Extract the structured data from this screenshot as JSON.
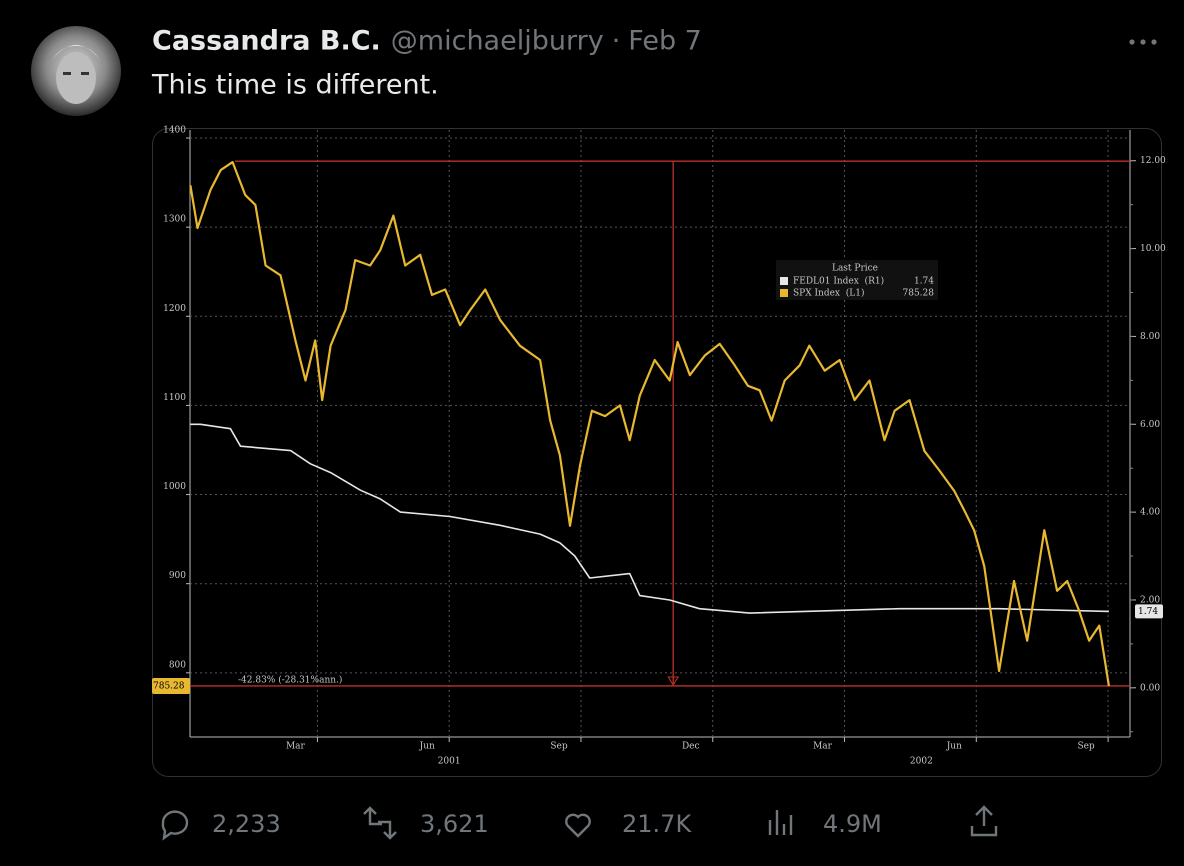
{
  "tweet": {
    "author": {
      "name": "Cassandra B.C.",
      "handle": "@michaeljburry"
    },
    "date": "Feb 7",
    "text": "This time is different.",
    "metrics": {
      "replies": "2,233",
      "reposts": "3,621",
      "likes": "21.7K",
      "views": "4.9M"
    }
  },
  "chart_data": {
    "type": "line",
    "xlim": [
      0.1,
      21.5
    ],
    "xticks": [
      {
        "value": 2.5,
        "label": "Mar"
      },
      {
        "value": 5.5,
        "label": "Jun"
      },
      {
        "value": 8.5,
        "label": "Sep"
      },
      {
        "value": 11.5,
        "label": "Dec"
      },
      {
        "value": 14.5,
        "label": "Mar"
      },
      {
        "value": 17.5,
        "label": "Jun"
      },
      {
        "value": 20.5,
        "label": "Sep"
      }
    ],
    "year_labels": [
      {
        "value": 6,
        "label": "2001"
      },
      {
        "value": 16.75,
        "label": "2002"
      }
    ],
    "ylim": [
      728,
      1409
    ],
    "yticks": [
      800,
      900,
      1000,
      1100,
      1200,
      1300,
      1400
    ],
    "y2lim": [
      -1.12,
      12.7
    ],
    "y2ticks": [
      {
        "value": 0,
        "label": "0.00"
      },
      {
        "value": 2,
        "label": "2.00"
      },
      {
        "value": 4,
        "label": "4.00"
      },
      {
        "value": 6,
        "label": "6.00"
      },
      {
        "value": 8,
        "label": "8.00"
      },
      {
        "value": 10,
        "label": "10.00"
      },
      {
        "value": 12,
        "label": "12.00"
      }
    ],
    "grid": true,
    "legend_title": "Last Price",
    "series": [
      {
        "name": "FEDL01 Index  (R1)",
        "color": "#e6e6e6",
        "axis": "y2",
        "last": 1.74,
        "x": [
          0.11,
          0.34,
          1.02,
          1.25,
          2.39,
          2.84,
          3.3,
          3.98,
          4.43,
          4.89,
          6.02,
          7.16,
          8.07,
          8.52,
          8.86,
          9.2,
          10.11,
          10.34,
          11.02,
          11.7,
          12.84,
          16.25,
          18.52,
          21.02
        ],
        "values": [
          6.0,
          6.0,
          5.9,
          5.5,
          5.4,
          5.1,
          4.9,
          4.5,
          4.3,
          4.0,
          3.9,
          3.7,
          3.5,
          3.3,
          3.0,
          2.5,
          2.6,
          2.1,
          2.0,
          1.8,
          1.7,
          1.8,
          1.8,
          1.74
        ]
      },
      {
        "name": "SPX Index  (L1)",
        "color": "#e8b830",
        "last": 785.28,
        "x": [
          0.11,
          0.27,
          0.57,
          0.8,
          1.07,
          1.36,
          1.59,
          1.82,
          2.16,
          2.5,
          2.73,
          2.95,
          3.11,
          3.3,
          3.64,
          3.86,
          4.2,
          4.43,
          4.73,
          5.0,
          5.34,
          5.61,
          5.91,
          6.25,
          6.48,
          6.82,
          7.16,
          7.61,
          8.07,
          8.3,
          8.52,
          8.75,
          8.98,
          9.25,
          9.55,
          9.89,
          10.11,
          10.34,
          10.68,
          11.02,
          11.2,
          11.48,
          11.82,
          12.16,
          12.5,
          12.8,
          13.07,
          13.34,
          13.64,
          13.98,
          14.2,
          14.55,
          14.89,
          15.23,
          15.57,
          15.91,
          16.14,
          16.48,
          16.82,
          17.16,
          17.5,
          17.73,
          17.95,
          18.18,
          18.52,
          18.86,
          19.16,
          19.55,
          19.84,
          20.07,
          20.34,
          20.57,
          20.8,
          21.02
        ],
        "values": [
          1347,
          1299,
          1342,
          1364,
          1373,
          1336,
          1325,
          1257,
          1246,
          1173,
          1128,
          1173,
          1106,
          1167,
          1207,
          1263,
          1257,
          1274,
          1313,
          1257,
          1269,
          1224,
          1230,
          1190,
          1207,
          1230,
          1196,
          1167,
          1151,
          1083,
          1044,
          965,
          1033,
          1094,
          1088,
          1100,
          1061,
          1111,
          1151,
          1128,
          1171,
          1134,
          1156,
          1169,
          1145,
          1122,
          1117,
          1083,
          1128,
          1145,
          1167,
          1139,
          1151,
          1106,
          1128,
          1061,
          1094,
          1106,
          1049,
          1027,
          1004,
          982,
          960,
          920,
          802,
          903,
          836,
          960,
          892,
          903,
          870,
          836,
          853,
          785.28
        ]
      }
    ],
    "annotation": {
      "text": "-42.83% (-28.31%ann.)",
      "high": 1374,
      "x": 11.1
    }
  }
}
